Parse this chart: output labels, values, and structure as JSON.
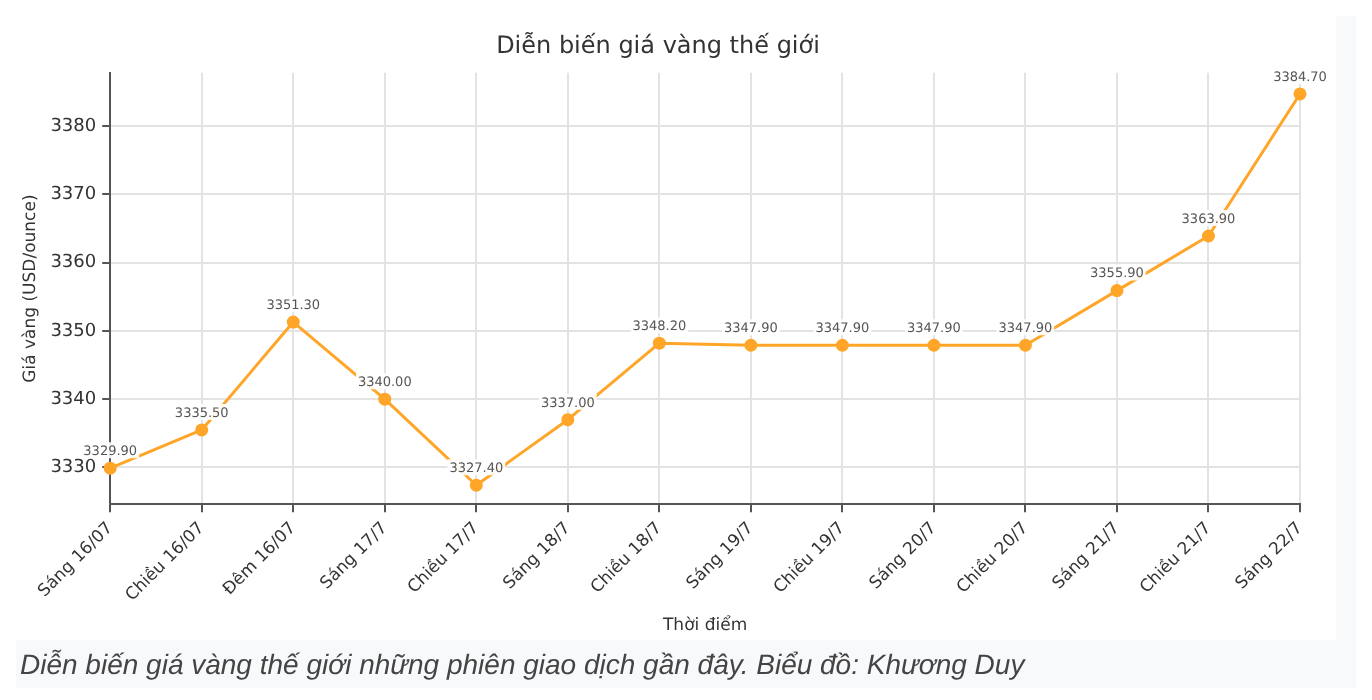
{
  "chart_data": {
    "type": "line",
    "title": "Diễn biến giá vàng thế giới",
    "xlabel": "Thời điểm",
    "ylabel": "Giá vàng (USD/ounce)",
    "categories": [
      "Sáng 16/07",
      "Chiều 16/07",
      "Đêm 16/07",
      "Sáng 17/7",
      "Chiều 17/7",
      "Sáng 18/7",
      "Chiều 18/7",
      "Sáng 19/7",
      "Chiều 19/7",
      "Sáng 20/7",
      "Chiều 20/7",
      "Sáng 21/7",
      "Chiều 21/7",
      "Sáng 22/7"
    ],
    "series": [
      {
        "color": "#ffa528",
        "values": [
          3329.9,
          3335.5,
          3351.3,
          3340.0,
          3327.4,
          3337.0,
          3348.2,
          3347.9,
          3347.9,
          3347.9,
          3347.9,
          3355.9,
          3363.9,
          3384.7
        ],
        "value_labels": [
          "3329.90",
          "3335.50",
          "3351.30",
          "3340.00",
          "3327.40",
          "3337.00",
          "3348.20",
          "3347.90",
          "3347.90",
          "3347.90",
          "3347.90",
          "3355.90",
          "3363.90",
          "3384.70"
        ]
      }
    ],
    "ylim": [
      3324.6,
      3387.8
    ],
    "yticks": [
      3330,
      3340,
      3350,
      3360,
      3370,
      3380
    ],
    "grid": true,
    "marker": "circle",
    "line_style": "solid",
    "legend": false,
    "annotations": [
      "Diễn biến giá vàng thế giới những phiên giao dịch gần đây. Biểu đồ: Khương Duy"
    ]
  }
}
